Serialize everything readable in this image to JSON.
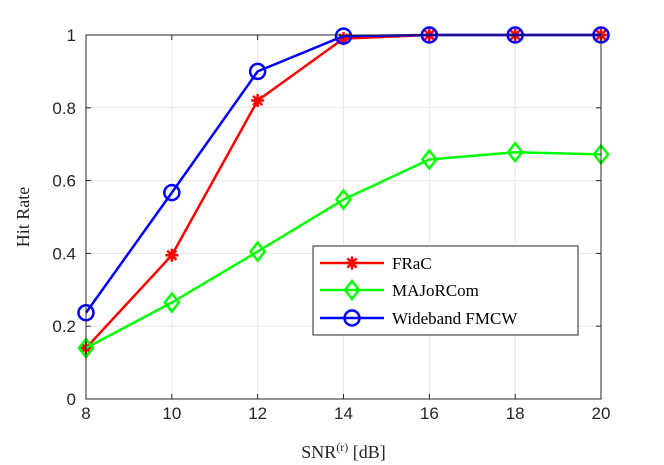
{
  "chart_data": {
    "type": "line",
    "title": "",
    "xlabel": "SNR",
    "xlabel_sup": "(r)",
    "xlabel_unit": " [dB]",
    "ylabel": "Hit Rate",
    "xlim": [
      8,
      20
    ],
    "ylim": [
      0,
      1
    ],
    "xticks": [
      8,
      10,
      12,
      14,
      16,
      18,
      20
    ],
    "yticks": [
      0,
      0.2,
      0.4,
      0.6,
      0.8,
      1
    ],
    "ytick_labels": [
      "0",
      "0.2",
      "0.4",
      "0.6",
      "0.8",
      "1"
    ],
    "grid": true,
    "legend_position": "lower-right",
    "x": [
      8,
      10,
      12,
      14,
      16,
      18,
      20
    ],
    "series": [
      {
        "name": "FRaC",
        "color": "#ff0000",
        "marker": "asterisk",
        "values": [
          0.14,
          0.395,
          0.82,
          0.99,
          1.0,
          1.0,
          1.0
        ]
      },
      {
        "name": "MAJoRCom",
        "color": "#00ff00",
        "marker": "diamond",
        "values": [
          0.14,
          0.265,
          0.405,
          0.548,
          0.658,
          0.678,
          0.672
        ]
      },
      {
        "name": "Wideband FMCW",
        "color": "#0000ff",
        "marker": "circle",
        "values": [
          0.237,
          0.567,
          0.9,
          0.997,
          1.0,
          1.0,
          1.0
        ]
      }
    ]
  }
}
